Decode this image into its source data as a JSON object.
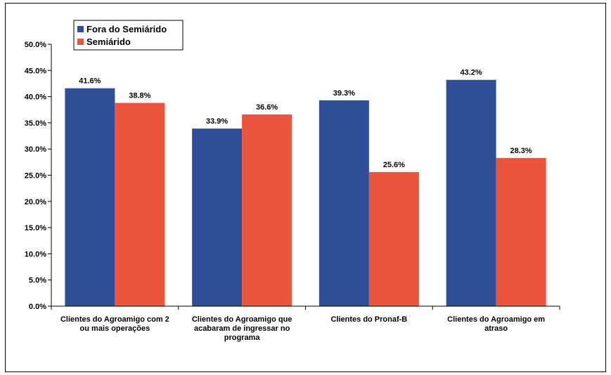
{
  "chart_data": {
    "type": "bar",
    "title": "",
    "xlabel": "",
    "ylabel": "",
    "ylim": [
      0,
      50
    ],
    "y_tick_step": 5,
    "y_tick_format": "percent_one_decimal",
    "grid": false,
    "legend_position": "top-left",
    "categories": [
      [
        "Clientes do Agroamigo com 2",
        "ou mais operações"
      ],
      [
        "Clientes do Agroamigo que",
        "acabaram de ingressar no",
        "programa"
      ],
      [
        "Clientes do Pronaf-B"
      ],
      [
        "Clientes do Agroamigo em",
        "atraso"
      ]
    ],
    "series": [
      {
        "name": "Fora do Semiárido",
        "color": "#2f4f99",
        "values": [
          41.6,
          33.9,
          39.3,
          43.2
        ]
      },
      {
        "name": "Semiárido",
        "color": "#eb553b",
        "values": [
          38.8,
          36.6,
          25.6,
          28.3
        ]
      }
    ]
  }
}
